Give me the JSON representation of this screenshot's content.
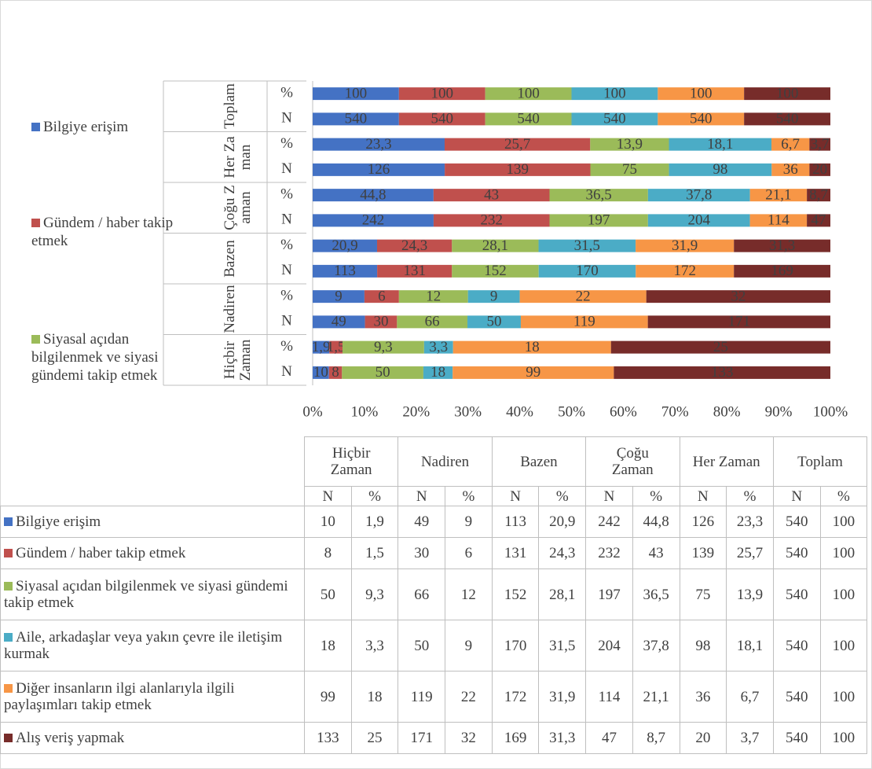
{
  "chart_data": {
    "type": "bar",
    "orientation": "horizontal",
    "stacking": "percent",
    "categories": [
      "N",
      "%",
      "N",
      "%",
      "N",
      "%",
      "N",
      "%",
      "N",
      "%",
      "N",
      "%"
    ],
    "category_groups": [
      "Hiçbir Zaman",
      "Nadiren",
      "Bazen",
      "Çoğu Zaman",
      "Her Zaman",
      "Toplam"
    ],
    "series": [
      {
        "name": "Bilgiye erişim",
        "color": "#4472c4",
        "values": [
          10,
          1.9,
          49,
          9,
          113,
          20.9,
          242,
          44.8,
          126,
          23.3,
          540,
          100
        ],
        "value_labels": [
          "10",
          "1,9",
          "49",
          "9",
          "113",
          "20,9",
          "242",
          "44,8",
          "126",
          "23,3",
          "540",
          "100"
        ]
      },
      {
        "name": "Gündem / haber takip etmek",
        "color": "#c0504d",
        "values": [
          8,
          1.5,
          30,
          6,
          131,
          24.3,
          232,
          43,
          139,
          25.7,
          540,
          100
        ],
        "value_labels": [
          "8",
          "1,5",
          "30",
          "6",
          "131",
          "24,3",
          "232",
          "43",
          "139",
          "25,7",
          "540",
          "100"
        ]
      },
      {
        "name": "Siyasal açıdan bilgilenmek ve siyasi gündemi takip etmek",
        "color": "#9bbb59",
        "values": [
          50,
          9.3,
          66,
          12,
          152,
          28.1,
          197,
          36.5,
          75,
          13.9,
          540,
          100
        ],
        "value_labels": [
          "50",
          "9,3",
          "66",
          "12",
          "152",
          "28,1",
          "197",
          "36,5",
          "75",
          "13,9",
          "540",
          "100"
        ]
      },
      {
        "name": "Aile, arkadaşlar veya yakın çevre ile iletişim kurmak",
        "color": "#4bacc6",
        "values": [
          18,
          3.3,
          50,
          9,
          170,
          31.5,
          204,
          37.8,
          98,
          18.1,
          540,
          100
        ],
        "value_labels": [
          "18",
          "3,3",
          "50",
          "9",
          "170",
          "31,5",
          "204",
          "37,8",
          "98",
          "18,1",
          "540",
          "100"
        ]
      },
      {
        "name": "Diğer insanların ilgi alanlarıyla ilgili paylaşımları takip etmek",
        "color": "#f79646",
        "values": [
          99,
          18,
          119,
          22,
          172,
          31.9,
          114,
          21.1,
          36,
          6.7,
          540,
          100
        ],
        "value_labels": [
          "99",
          "18",
          "119",
          "22",
          "172",
          "31,9",
          "114",
          "21,1",
          "36",
          "6,7",
          "540",
          "100"
        ]
      },
      {
        "name": "Alış veriş yapmak",
        "color": "#772c2a",
        "values": [
          133,
          25,
          171,
          32,
          169,
          31.3,
          47,
          8.7,
          20,
          3.7,
          540,
          100
        ],
        "value_labels": [
          "133",
          "25",
          "171",
          "32",
          "169",
          "31,3",
          "47",
          "8,7",
          "20",
          "3,7",
          "540",
          "100"
        ]
      }
    ],
    "xlim": [
      0,
      100
    ],
    "xticks": [
      {
        "value": 0,
        "label": "0%"
      },
      {
        "value": 10,
        "label": "10%"
      },
      {
        "value": 20,
        "label": "20%"
      },
      {
        "value": 30,
        "label": "30%"
      },
      {
        "value": 40,
        "label": "40%"
      },
      {
        "value": 50,
        "label": "50%"
      },
      {
        "value": 60,
        "label": "60%"
      },
      {
        "value": 70,
        "label": "70%"
      },
      {
        "value": 80,
        "label": "80%"
      },
      {
        "value": 90,
        "label": "90%"
      },
      {
        "value": 100,
        "label": "100%"
      }
    ],
    "legend": {
      "position": "left",
      "visible_entries": 3
    },
    "data_table": true
  }
}
